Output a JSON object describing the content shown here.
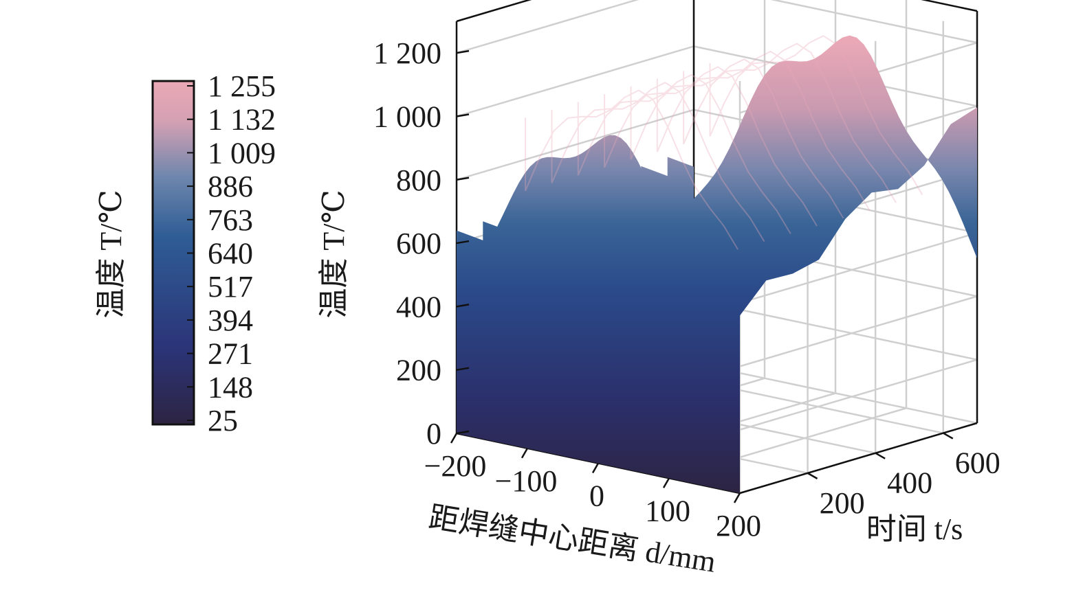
{
  "chart_data": {
    "type": "surface",
    "zlabel": "温度 T/℃",
    "xlabel": "距焊缝中心距离 d/mm",
    "ylabel": "时间 t/s",
    "colorbar": {
      "label": "温度 T/℃",
      "range": [
        25,
        1255
      ],
      "ticks": [
        "1 255",
        "1 132",
        "1 009",
        "886",
        "763",
        "640",
        "517",
        "394",
        "271",
        "148",
        "25"
      ],
      "colors": [
        "#2d2442",
        "#2b3478",
        "#2f5d95",
        "#6e86ad",
        "#d3a0b3",
        "#eba9b5"
      ]
    },
    "z_ticks": [
      "0",
      "200",
      "400",
      "600",
      "800",
      "1 000",
      "1 200"
    ],
    "x_ticks": [
      "−200",
      "−100",
      "0",
      "100",
      "200"
    ],
    "y_ticks": [
      "200",
      "400",
      "600"
    ],
    "xlim": [
      -200,
      200
    ],
    "ylim": [
      0,
      700
    ],
    "zlim": [
      0,
      1300
    ],
    "peak_temperature": 1255,
    "ambient_temperature": 25,
    "grid": true
  }
}
